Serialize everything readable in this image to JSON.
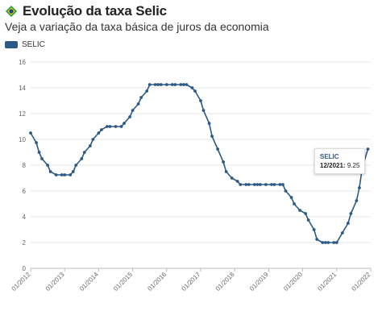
{
  "header": {
    "title": "Evolução da taxa Selic",
    "subtitle": "Veja a variação da taxa básica de juros da economia"
  },
  "legend": {
    "label": "SELIC"
  },
  "tooltip": {
    "series": "SELIC",
    "label": "12/2021:",
    "value": "9.25"
  },
  "colors": {
    "line": "#2c5a87",
    "grid": "#e4e4e4",
    "axis": "#bbbbbb",
    "flag_green": "#1f9d3a",
    "flag_yellow": "#f5d000",
    "flag_blue": "#1b3f8c"
  },
  "chart_data": {
    "type": "line",
    "title": "Evolução da taxa Selic",
    "subtitle": "Veja a variação da taxa básica de juros da economia",
    "xlabel": "",
    "ylabel": "",
    "ylim": [
      0,
      16
    ],
    "yticks": [
      "0",
      "2",
      "4",
      "6",
      "8",
      "10",
      "12",
      "14",
      "16"
    ],
    "xticks": [
      "01/2012",
      "01/2013",
      "01/2014",
      "01/2015",
      "01/2016",
      "01/2017",
      "01/2018",
      "01/2019",
      "01/2020",
      "01/2021",
      "01/2022"
    ],
    "grid": true,
    "legend_position": "top-left",
    "series": [
      {
        "name": "SELIC",
        "points": [
          [
            "2012-01",
            10.5
          ],
          [
            "2012-03",
            9.75
          ],
          [
            "2012-04",
            9.0
          ],
          [
            "2012-05",
            8.5
          ],
          [
            "2012-07",
            8.0
          ],
          [
            "2012-08",
            7.5
          ],
          [
            "2012-10",
            7.25
          ],
          [
            "2012-12",
            7.25
          ],
          [
            "2013-01",
            7.25
          ],
          [
            "2013-03",
            7.25
          ],
          [
            "2013-04",
            7.5
          ],
          [
            "2013-05",
            8.0
          ],
          [
            "2013-07",
            8.5
          ],
          [
            "2013-08",
            9.0
          ],
          [
            "2013-10",
            9.5
          ],
          [
            "2013-11",
            10.0
          ],
          [
            "2014-01",
            10.5
          ],
          [
            "2014-02",
            10.75
          ],
          [
            "2014-04",
            11.0
          ],
          [
            "2014-05",
            11.0
          ],
          [
            "2014-07",
            11.0
          ],
          [
            "2014-09",
            11.0
          ],
          [
            "2014-10",
            11.25
          ],
          [
            "2014-12",
            11.75
          ],
          [
            "2015-01",
            12.25
          ],
          [
            "2015-03",
            12.75
          ],
          [
            "2015-04",
            13.25
          ],
          [
            "2015-06",
            13.75
          ],
          [
            "2015-07",
            14.25
          ],
          [
            "2015-09",
            14.25
          ],
          [
            "2015-10",
            14.25
          ],
          [
            "2015-11",
            14.25
          ],
          [
            "2016-01",
            14.25
          ],
          [
            "2016-03",
            14.25
          ],
          [
            "2016-04",
            14.25
          ],
          [
            "2016-06",
            14.25
          ],
          [
            "2016-07",
            14.25
          ],
          [
            "2016-08",
            14.25
          ],
          [
            "2016-10",
            14.0
          ],
          [
            "2016-11",
            13.75
          ],
          [
            "2017-01",
            13.0
          ],
          [
            "2017-02",
            12.25
          ],
          [
            "2017-04",
            11.25
          ],
          [
            "2017-05",
            10.25
          ],
          [
            "2017-07",
            9.25
          ],
          [
            "2017-09",
            8.25
          ],
          [
            "2017-10",
            7.5
          ],
          [
            "2017-12",
            7.0
          ],
          [
            "2018-02",
            6.75
          ],
          [
            "2018-03",
            6.5
          ],
          [
            "2018-05",
            6.5
          ],
          [
            "2018-06",
            6.5
          ],
          [
            "2018-08",
            6.5
          ],
          [
            "2018-09",
            6.5
          ],
          [
            "2018-10",
            6.5
          ],
          [
            "2018-12",
            6.5
          ],
          [
            "2019-02",
            6.5
          ],
          [
            "2019-03",
            6.5
          ],
          [
            "2019-05",
            6.5
          ],
          [
            "2019-06",
            6.5
          ],
          [
            "2019-07",
            6.0
          ],
          [
            "2019-09",
            5.5
          ],
          [
            "2019-10",
            5.0
          ],
          [
            "2019-12",
            4.5
          ],
          [
            "2020-02",
            4.25
          ],
          [
            "2020-03",
            3.75
          ],
          [
            "2020-05",
            3.0
          ],
          [
            "2020-06",
            2.25
          ],
          [
            "2020-08",
            2.0
          ],
          [
            "2020-09",
            2.0
          ],
          [
            "2020-10",
            2.0
          ],
          [
            "2020-12",
            2.0
          ],
          [
            "2021-01",
            2.0
          ],
          [
            "2021-03",
            2.75
          ],
          [
            "2021-05",
            3.5
          ],
          [
            "2021-06",
            4.25
          ],
          [
            "2021-08",
            5.25
          ],
          [
            "2021-09",
            6.25
          ],
          [
            "2021-10",
            7.75
          ],
          [
            "2021-12",
            9.25
          ]
        ]
      }
    ]
  }
}
